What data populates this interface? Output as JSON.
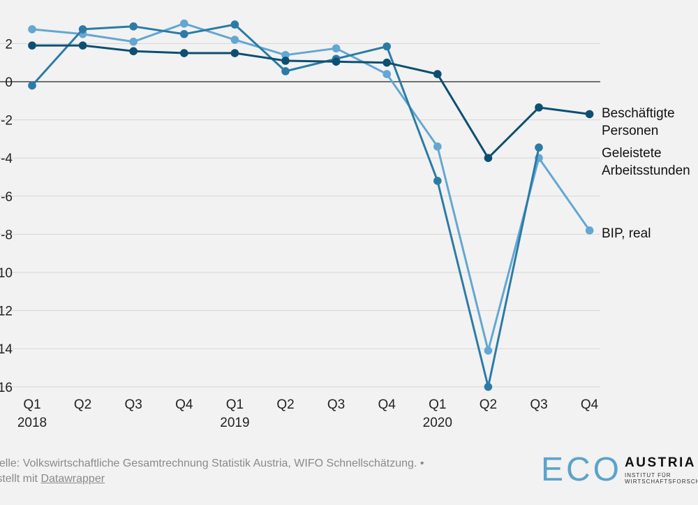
{
  "chart_data": {
    "type": "line",
    "x": [
      "Q1",
      "Q2",
      "Q3",
      "Q4",
      "Q1",
      "Q2",
      "Q3",
      "Q4",
      "Q1",
      "Q2",
      "Q3",
      "Q4"
    ],
    "year_labels": [
      {
        "index": 0,
        "label": "2018"
      },
      {
        "index": 4,
        "label": "2019"
      },
      {
        "index": 8,
        "label": "2020"
      }
    ],
    "yticks": [
      "2",
      "0",
      "-2",
      "-4",
      "-6",
      "-8",
      "-10",
      "-12",
      "-14",
      "-16"
    ],
    "ylim": [
      -16,
      3
    ],
    "grid": true,
    "series": [
      {
        "name": "Beschäftigte Personen",
        "label_lines": [
          "Beschäftigte",
          "Personen"
        ],
        "color": "#0d4f72",
        "values": [
          1.9,
          1.9,
          1.6,
          1.5,
          1.5,
          1.1,
          1.05,
          1.0,
          0.4,
          -4.0,
          -1.35,
          -1.7
        ]
      },
      {
        "name": "Geleistete Arbeitsstunden",
        "label_lines": [
          "Geleistete",
          "Arbeitsstunden"
        ],
        "color": "#2c7ba6",
        "values": [
          -0.2,
          2.75,
          2.9,
          2.5,
          3.0,
          0.55,
          1.2,
          1.85,
          -5.2,
          -16.0,
          -3.45,
          null
        ]
      },
      {
        "name": "BIP, real",
        "label_lines": [
          "BIP, real"
        ],
        "color": "#63a7d2",
        "values": [
          2.75,
          2.5,
          2.1,
          3.05,
          2.2,
          1.4,
          1.75,
          0.4,
          -3.4,
          -14.1,
          -4.0,
          -7.8
        ]
      }
    ]
  },
  "footer": {
    "line1": "uelle: Volkswirtschaftliche Gesamtrechnung Statistik Austria, WIFO Schnellschätzung. •",
    "line2_prefix": "rstellt mit ",
    "line2_link": "Datawrapper"
  },
  "logo": {
    "eco": "ECO",
    "austria": "AUSTRIA",
    "sub1": "INSTITUT FÜR",
    "sub2": "WIRTSCHAFTSFORSCHU"
  },
  "colors": {
    "background": "#f2f2f2",
    "grid": "#d6d6d6",
    "zero_line": "#222222"
  }
}
